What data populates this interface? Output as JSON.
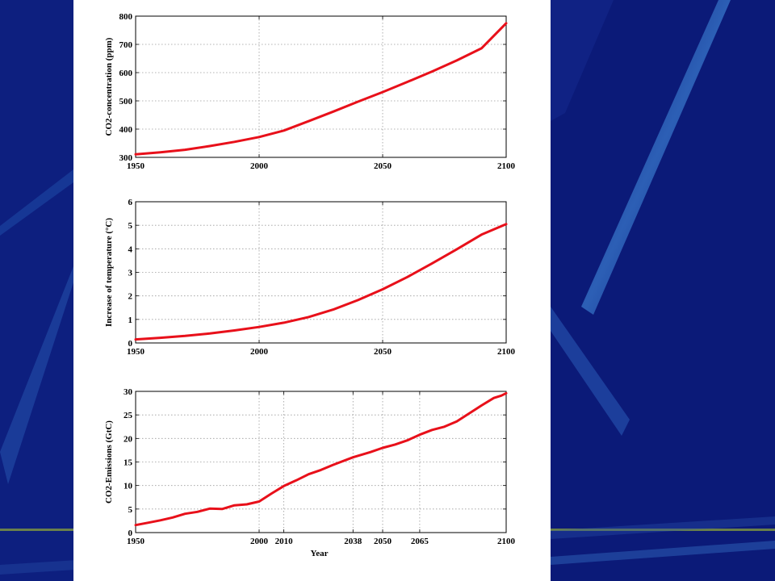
{
  "colors": {
    "background": "#0b1a78",
    "panel": "#ffffff",
    "series": "#e8101a",
    "grid": "#9a9a9a"
  },
  "chart_data": [
    {
      "type": "line",
      "xlabel": "",
      "ylabel": "CO2-concentration (ppm)",
      "xlim": [
        1950,
        2100
      ],
      "ylim": [
        300,
        800
      ],
      "xticks": [
        1950,
        2000,
        2050,
        2100
      ],
      "yticks": [
        300,
        400,
        500,
        600,
        700,
        800
      ],
      "grid": true,
      "series": [
        {
          "x": [
            1950,
            1960,
            1970,
            1980,
            1990,
            2000,
            2010,
            2020,
            2030,
            2040,
            2050,
            2060,
            2070,
            2080,
            2090,
            2100
          ],
          "y": [
            311,
            318,
            327,
            340,
            355,
            372,
            395,
            428,
            462,
            497,
            531,
            567,
            604,
            643,
            686,
            775
          ]
        }
      ]
    },
    {
      "type": "line",
      "xlabel": "",
      "ylabel": "Increase of temperature (°C)",
      "xlim": [
        1950,
        2100
      ],
      "ylim": [
        0,
        6
      ],
      "xticks": [
        1950,
        2000,
        2050,
        2100
      ],
      "yticks": [
        0,
        1,
        2,
        3,
        4,
        5,
        6
      ],
      "grid": true,
      "series": [
        {
          "x": [
            1950,
            1960,
            1970,
            1980,
            1990,
            2000,
            2010,
            2020,
            2030,
            2040,
            2050,
            2060,
            2070,
            2080,
            2090,
            2100
          ],
          "y": [
            0.15,
            0.22,
            0.3,
            0.4,
            0.53,
            0.68,
            0.86,
            1.1,
            1.42,
            1.82,
            2.28,
            2.8,
            3.38,
            3.98,
            4.6,
            5.05
          ]
        }
      ]
    },
    {
      "type": "line",
      "xlabel": "Year",
      "ylabel": "CO2-Emissions (GtC)",
      "xlim": [
        1950,
        2100
      ],
      "ylim": [
        0,
        30
      ],
      "xticks": [
        1950,
        2000,
        2010,
        2038,
        2050,
        2065,
        2100
      ],
      "yticks": [
        0,
        5,
        10,
        15,
        20,
        25,
        30
      ],
      "grid": true,
      "series": [
        {
          "x": [
            1950,
            1955,
            1960,
            1965,
            1970,
            1975,
            1980,
            1985,
            1990,
            1995,
            2000,
            2005,
            2010,
            2015,
            2020,
            2025,
            2030,
            2038,
            2045,
            2050,
            2055,
            2060,
            2065,
            2070,
            2075,
            2080,
            2085,
            2090,
            2095,
            2098,
            2100
          ],
          "y": [
            1.6,
            2.1,
            2.6,
            3.2,
            4.0,
            4.4,
            5.1,
            5.0,
            5.8,
            6.0,
            6.6,
            8.3,
            9.9,
            11.1,
            12.4,
            13.3,
            14.4,
            16.0,
            17.1,
            18.0,
            18.7,
            19.6,
            20.8,
            21.8,
            22.5,
            23.6,
            25.3,
            27.0,
            28.6,
            29.1,
            29.6
          ]
        }
      ]
    }
  ]
}
